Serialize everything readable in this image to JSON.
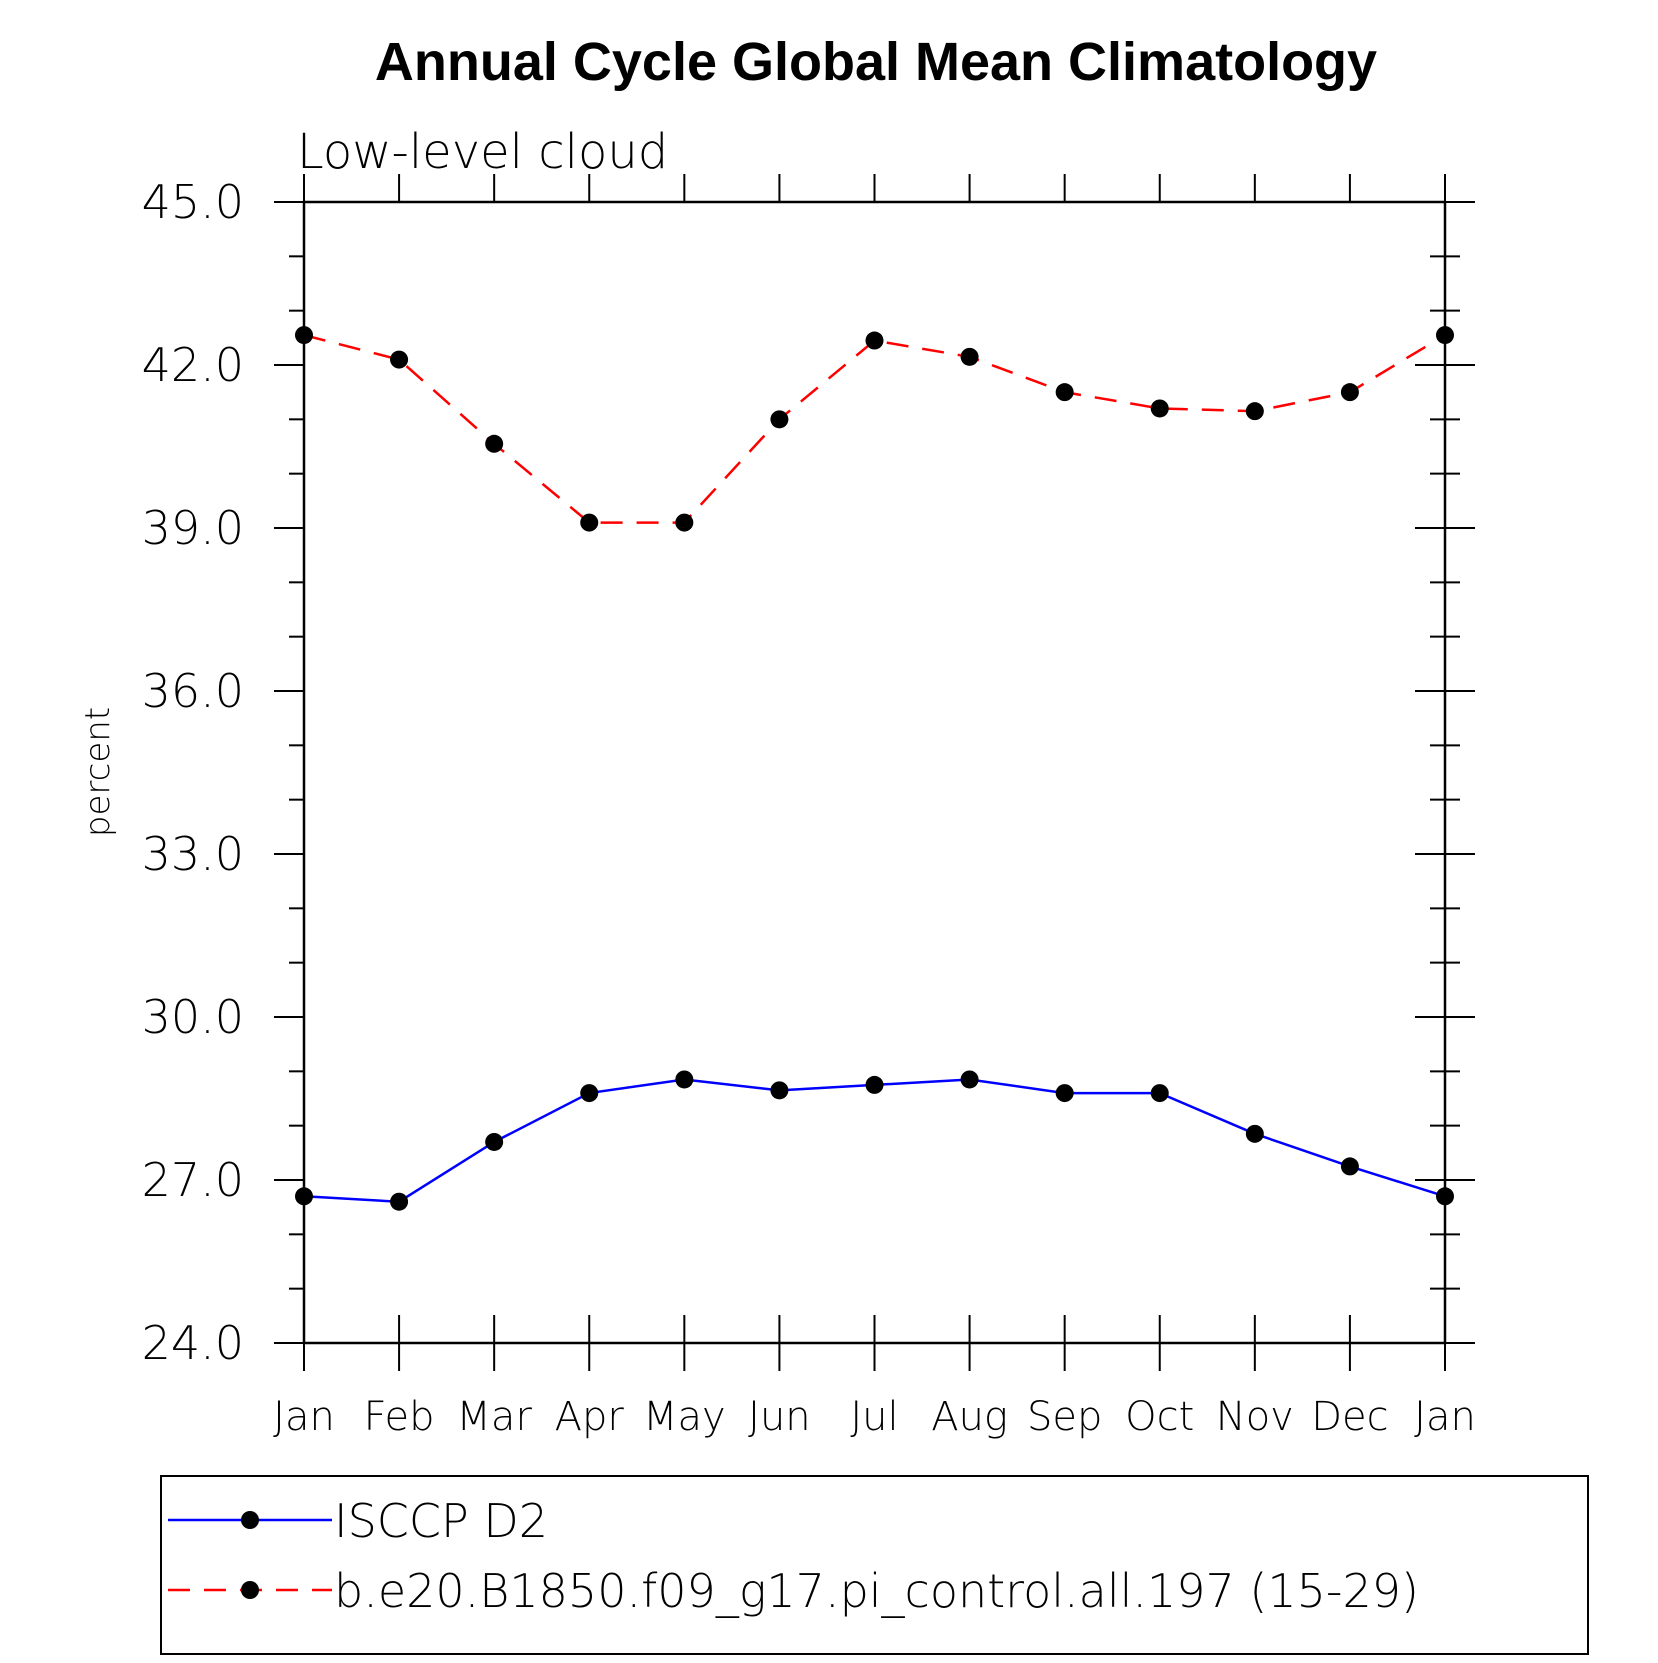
{
  "chart_data": {
    "type": "line",
    "title": "Annual Cycle Global Mean Climatology",
    "subtitle": "Low-level cloud",
    "xlabel": "",
    "ylabel": "percent",
    "categories": [
      "Jan",
      "Feb",
      "Mar",
      "Apr",
      "May",
      "Jun",
      "Jul",
      "Aug",
      "Sep",
      "Oct",
      "Nov",
      "Dec",
      "Jan"
    ],
    "ylim": [
      24.0,
      45.0
    ],
    "yticks": [
      "24.0",
      "27.0",
      "30.0",
      "33.0",
      "36.0",
      "39.0",
      "42.0",
      "45.0"
    ],
    "grid": false,
    "legend_position": "bottom",
    "series": [
      {
        "name": "ISCCP D2",
        "values": [
          26.7,
          26.6,
          27.7,
          28.6,
          28.85,
          28.65,
          28.75,
          28.85,
          28.6,
          28.6,
          27.85,
          27.25,
          26.7
        ],
        "color": "#0000ff",
        "dash": "solid",
        "marker": "filled-circle"
      },
      {
        "name": "b.e20.B1850.f09_g17.pi_control.all.197 (15-29)",
        "values": [
          42.55,
          42.1,
          40.55,
          39.1,
          39.1,
          41.0,
          42.45,
          42.15,
          41.5,
          41.2,
          41.15,
          41.5,
          42.55
        ],
        "color": "#ff0000",
        "dash": "dashed",
        "marker": "filled-circle"
      }
    ]
  }
}
